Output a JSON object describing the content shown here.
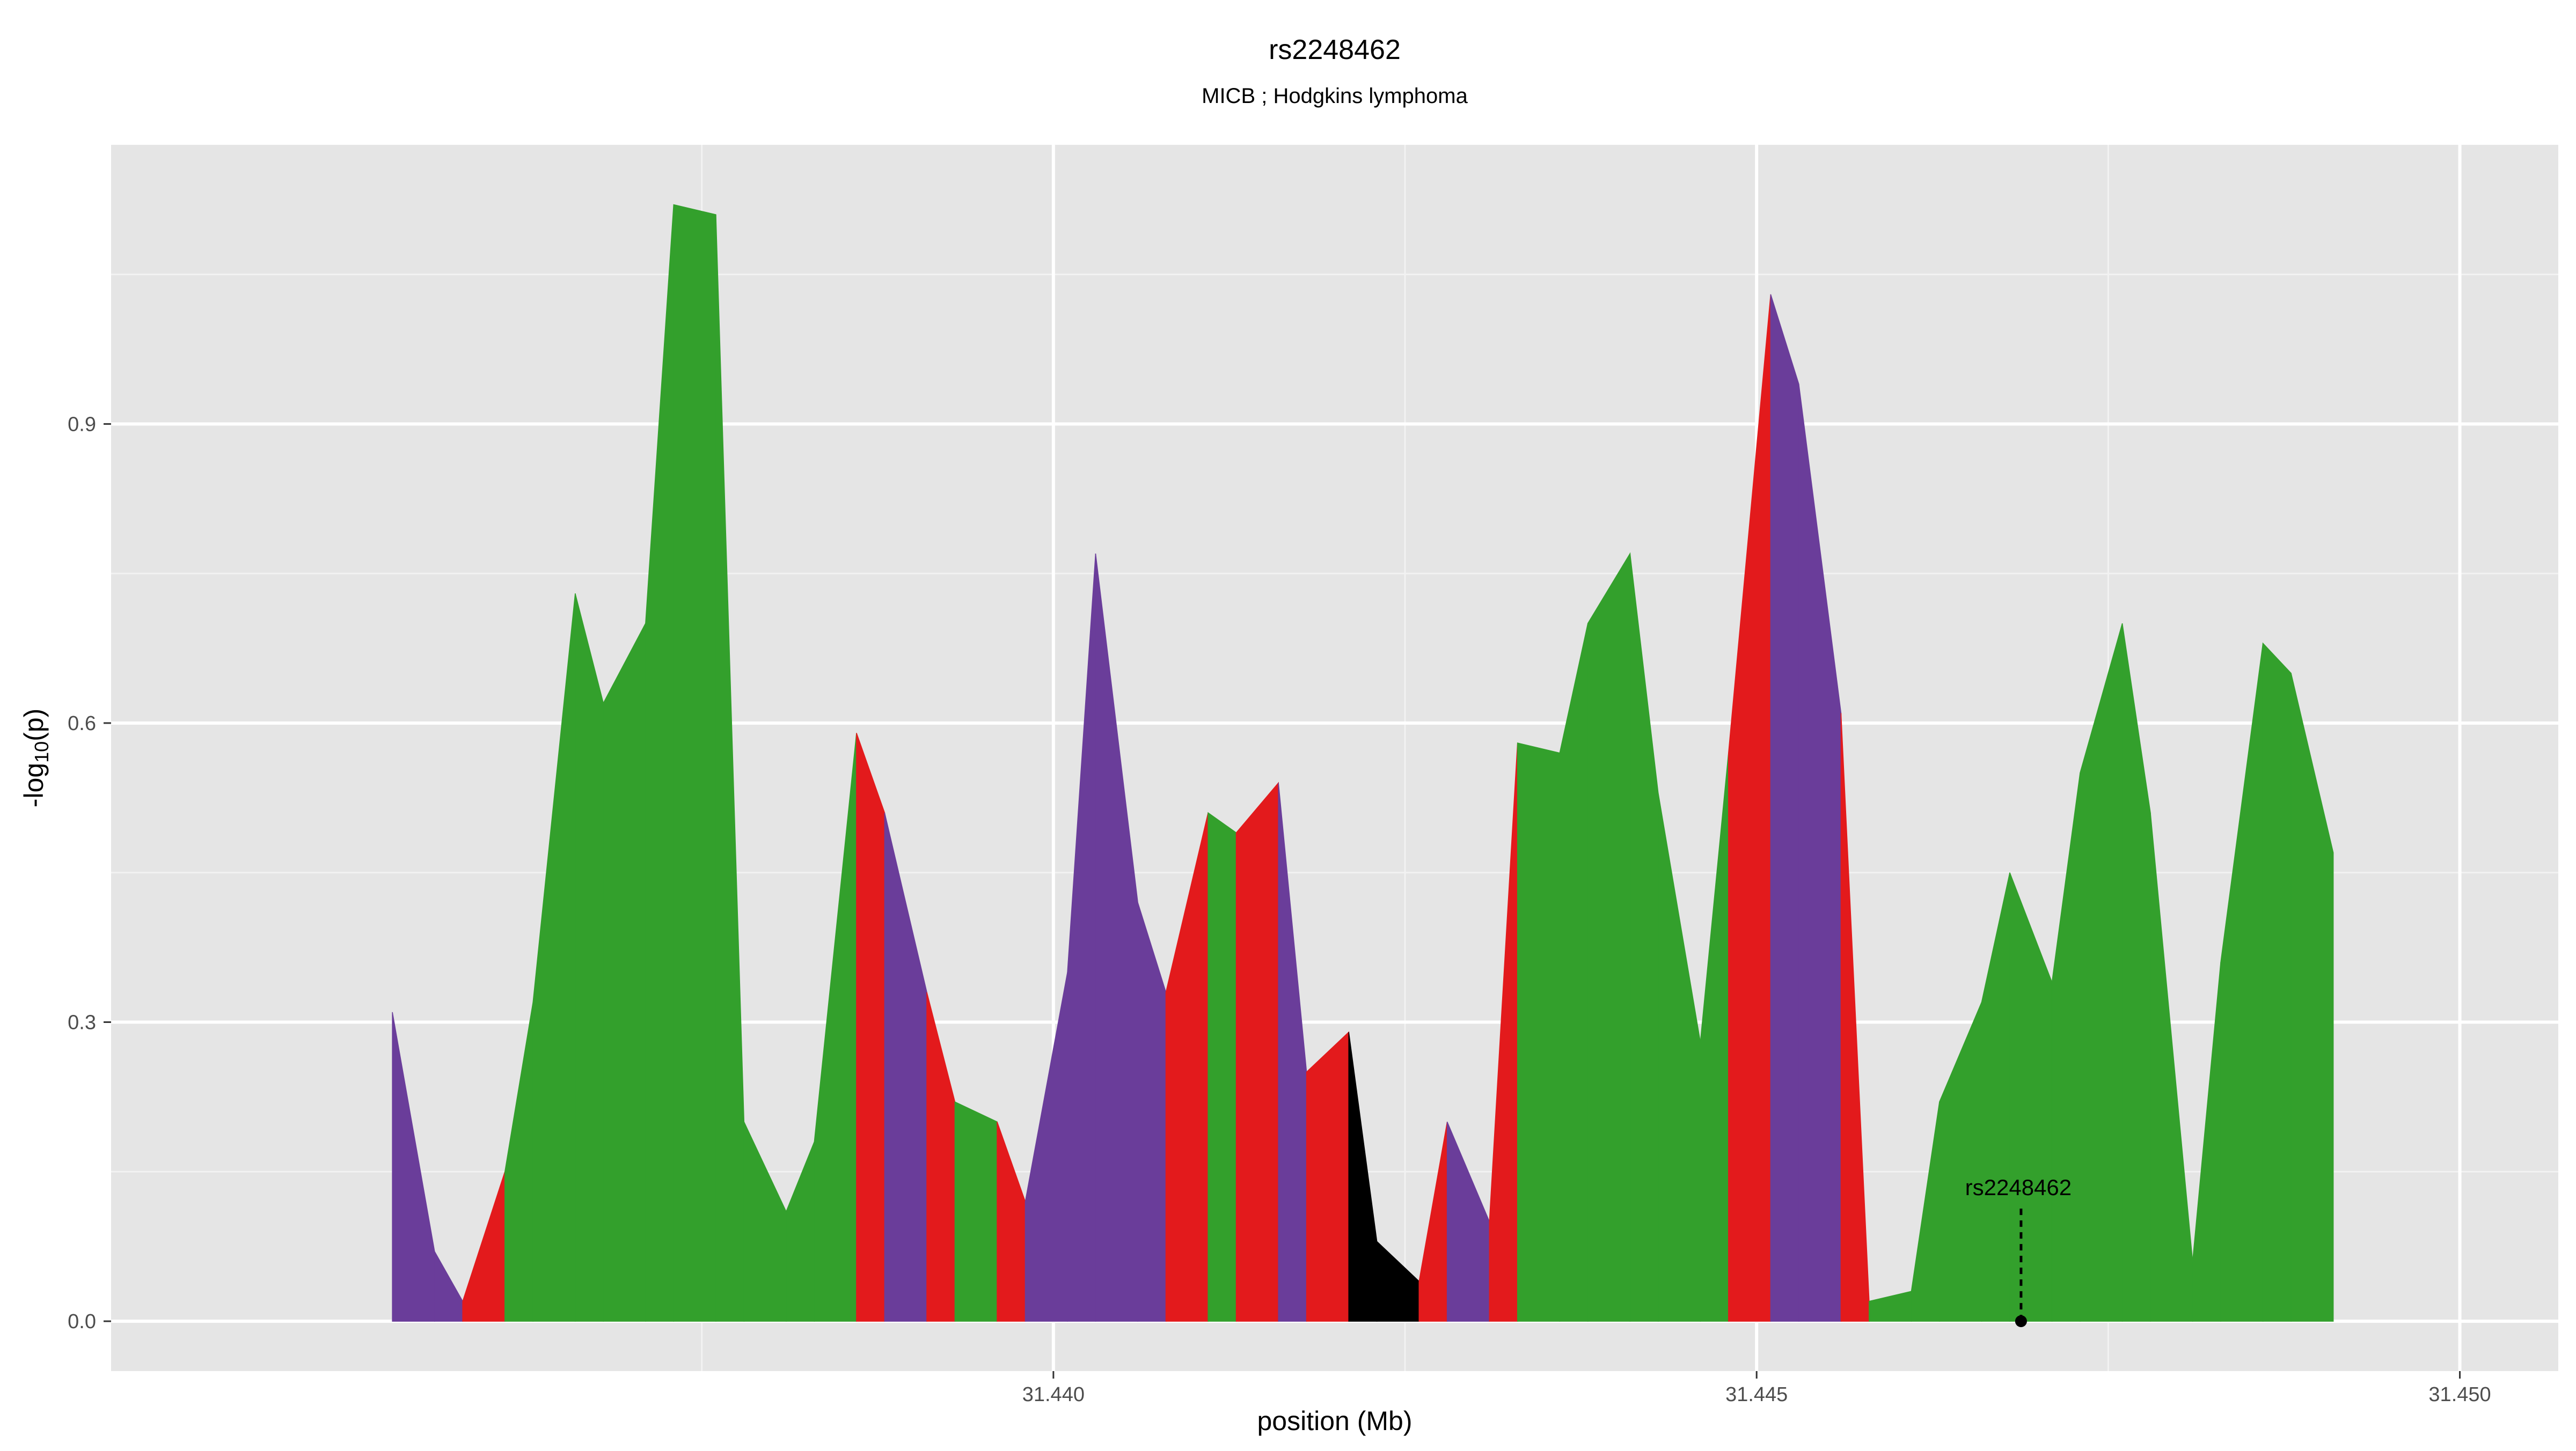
{
  "chart_data": {
    "type": "area",
    "title": "rs2248462",
    "subtitle": "MICB ; Hodgkins lymphoma",
    "xlabel": "position (Mb)",
    "ylabel": "-log10(p)",
    "xlim": [
      31.4333,
      31.4507
    ],
    "ylim": [
      -0.05,
      1.18
    ],
    "x_ticks": [
      31.44,
      31.445,
      31.45
    ],
    "x_tick_labels": [
      "31.440",
      "31.445",
      "31.450"
    ],
    "y_ticks": [
      0.0,
      0.3,
      0.6,
      0.9
    ],
    "y_tick_labels": [
      "0.0",
      "0.3",
      "0.6",
      "0.9"
    ],
    "grid": true,
    "legend": "none",
    "colors": {
      "panel_bg": "#e5e5e5",
      "grid_major": "#ffffff",
      "grid_minor": "#f2f2f2",
      "green": "#33a02c",
      "red": "#e31a1c",
      "purple": "#6a3d9a",
      "black": "#000000",
      "tick_label": "#4d4d4d",
      "text": "#000000"
    },
    "points": [
      {
        "x": 31.4353,
        "y": 0.31,
        "color": "purple"
      },
      {
        "x": 31.4356,
        "y": 0.07,
        "color": "purple"
      },
      {
        "x": 31.4358,
        "y": 0.02,
        "color": "red"
      },
      {
        "x": 31.4361,
        "y": 0.15,
        "color": "green"
      },
      {
        "x": 31.4363,
        "y": 0.32,
        "color": "green"
      },
      {
        "x": 31.4366,
        "y": 0.73,
        "color": "green"
      },
      {
        "x": 31.4368,
        "y": 0.62,
        "color": "green"
      },
      {
        "x": 31.4371,
        "y": 0.7,
        "color": "green"
      },
      {
        "x": 31.4373,
        "y": 1.12,
        "color": "green"
      },
      {
        "x": 31.4376,
        "y": 1.11,
        "color": "green"
      },
      {
        "x": 31.4378,
        "y": 0.2,
        "color": "green"
      },
      {
        "x": 31.4381,
        "y": 0.11,
        "color": "green"
      },
      {
        "x": 31.4383,
        "y": 0.18,
        "color": "green"
      },
      {
        "x": 31.4386,
        "y": 0.59,
        "color": "red"
      },
      {
        "x": 31.4388,
        "y": 0.51,
        "color": "purple"
      },
      {
        "x": 31.4391,
        "y": 0.33,
        "color": "red"
      },
      {
        "x": 31.4393,
        "y": 0.22,
        "color": "green"
      },
      {
        "x": 31.4396,
        "y": 0.2,
        "color": "red"
      },
      {
        "x": 31.4398,
        "y": 0.12,
        "color": "purple"
      },
      {
        "x": 31.4401,
        "y": 0.35,
        "color": "purple"
      },
      {
        "x": 31.4403,
        "y": 0.77,
        "color": "purple"
      },
      {
        "x": 31.4406,
        "y": 0.42,
        "color": "purple"
      },
      {
        "x": 31.4408,
        "y": 0.33,
        "color": "red"
      },
      {
        "x": 31.4411,
        "y": 0.51,
        "color": "green"
      },
      {
        "x": 31.4413,
        "y": 0.49,
        "color": "red"
      },
      {
        "x": 31.4416,
        "y": 0.54,
        "color": "purple"
      },
      {
        "x": 31.4418,
        "y": 0.25,
        "color": "red"
      },
      {
        "x": 31.4421,
        "y": 0.29,
        "color": "black"
      },
      {
        "x": 31.4423,
        "y": 0.08,
        "color": "black"
      },
      {
        "x": 31.4426,
        "y": 0.04,
        "color": "red"
      },
      {
        "x": 31.4428,
        "y": 0.2,
        "color": "purple"
      },
      {
        "x": 31.4431,
        "y": 0.1,
        "color": "red"
      },
      {
        "x": 31.4433,
        "y": 0.58,
        "color": "green"
      },
      {
        "x": 31.4436,
        "y": 0.57,
        "color": "green"
      },
      {
        "x": 31.4438,
        "y": 0.7,
        "color": "green"
      },
      {
        "x": 31.4441,
        "y": 0.77,
        "color": "green"
      },
      {
        "x": 31.4443,
        "y": 0.53,
        "color": "green"
      },
      {
        "x": 31.4446,
        "y": 0.28,
        "color": "green"
      },
      {
        "x": 31.4448,
        "y": 0.57,
        "color": "red"
      },
      {
        "x": 31.4451,
        "y": 1.03,
        "color": "purple"
      },
      {
        "x": 31.4453,
        "y": 0.94,
        "color": "purple"
      },
      {
        "x": 31.4456,
        "y": 0.61,
        "color": "red"
      },
      {
        "x": 31.4458,
        "y": 0.02,
        "color": "green"
      },
      {
        "x": 31.4461,
        "y": 0.03,
        "color": "green"
      },
      {
        "x": 31.4463,
        "y": 0.22,
        "color": "green"
      },
      {
        "x": 31.4466,
        "y": 0.32,
        "color": "green"
      },
      {
        "x": 31.4468,
        "y": 0.45,
        "color": "green"
      },
      {
        "x": 31.4471,
        "y": 0.34,
        "color": "green"
      },
      {
        "x": 31.4473,
        "y": 0.55,
        "color": "green"
      },
      {
        "x": 31.4476,
        "y": 0.7,
        "color": "green"
      },
      {
        "x": 31.4478,
        "y": 0.51,
        "color": "green"
      },
      {
        "x": 31.4481,
        "y": 0.06,
        "color": "green"
      },
      {
        "x": 31.4483,
        "y": 0.36,
        "color": "green"
      },
      {
        "x": 31.4486,
        "y": 0.68,
        "color": "green"
      },
      {
        "x": 31.4488,
        "y": 0.65,
        "color": "green"
      },
      {
        "x": 31.4491,
        "y": 0.47,
        "color": "green"
      }
    ],
    "annotation": {
      "label": "rs2248462",
      "x": 31.44688,
      "y": 0.0
    }
  }
}
